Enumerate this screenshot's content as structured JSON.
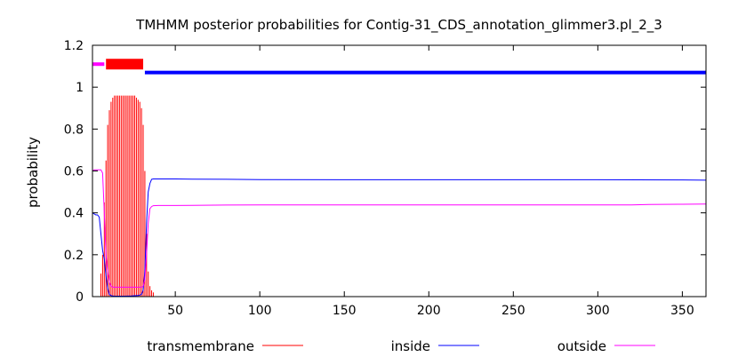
{
  "chart_data": {
    "type": "line",
    "title": "TMHMM posterior probabilities for Contig-31_CDS_annotation_glimmer3.pl_2_3",
    "xlabel": "",
    "ylabel": "probability",
    "xlim": [
      1,
      364
    ],
    "ylim": [
      0,
      1.2
    ],
    "x_ticks": [
      50,
      100,
      150,
      200,
      250,
      300,
      350
    ],
    "y_ticks": [
      0,
      0.2,
      0.4,
      0.6,
      0.8,
      1,
      1.2
    ],
    "y_tick_labels": [
      "0",
      "0.2",
      "0.4",
      "0.6",
      "0.8",
      "1",
      "1.2"
    ],
    "grid": false,
    "legend_position": "bottom",
    "topology": [
      {
        "region": "outside",
        "start": 1,
        "end": 8,
        "level": 1.11,
        "color": "#ff00ff"
      },
      {
        "region": "transmembrane",
        "start": 9,
        "end": 31,
        "level": 1.11,
        "color": "#ff0000"
      },
      {
        "region": "inside",
        "start": 32,
        "end": 364,
        "level": 1.07,
        "color": "#0000ff"
      }
    ],
    "series": [
      {
        "name": "transmembrane",
        "color": "#ff0000",
        "style": "impulses",
        "x": [
          6,
          7,
          8,
          9,
          10,
          11,
          12,
          13,
          14,
          15,
          16,
          17,
          18,
          19,
          20,
          21,
          22,
          23,
          24,
          25,
          26,
          27,
          28,
          29,
          30,
          31,
          32,
          33,
          34,
          35,
          36,
          37
        ],
        "values": [
          0.11,
          0.2,
          0.45,
          0.65,
          0.82,
          0.89,
          0.93,
          0.95,
          0.96,
          0.96,
          0.96,
          0.96,
          0.96,
          0.96,
          0.96,
          0.96,
          0.96,
          0.96,
          0.96,
          0.96,
          0.96,
          0.95,
          0.94,
          0.93,
          0.9,
          0.82,
          0.6,
          0.3,
          0.12,
          0.05,
          0.03,
          0.02
        ]
      },
      {
        "name": "inside",
        "color": "#0000ff",
        "style": "line",
        "x": [
          1,
          2,
          3,
          4,
          5,
          6,
          7,
          8,
          9,
          10,
          11,
          12,
          13,
          14,
          15,
          17,
          20,
          24,
          28,
          30,
          31,
          32,
          33,
          34,
          35,
          36,
          37,
          40,
          50,
          60,
          80,
          100,
          150,
          200,
          250,
          300,
          350,
          364
        ],
        "values": [
          0.4,
          0.395,
          0.39,
          0.39,
          0.38,
          0.3,
          0.22,
          0.18,
          0.1,
          0.04,
          0.01,
          0.005,
          0.003,
          0.002,
          0.002,
          0.002,
          0.002,
          0.003,
          0.005,
          0.01,
          0.03,
          0.12,
          0.35,
          0.5,
          0.54,
          0.56,
          0.562,
          0.562,
          0.562,
          0.561,
          0.56,
          0.559,
          0.558,
          0.558,
          0.558,
          0.558,
          0.557,
          0.556
        ]
      },
      {
        "name": "outside",
        "color": "#ff00ff",
        "style": "line",
        "x": [
          1,
          2,
          3,
          4,
          5,
          6,
          7,
          8,
          9,
          10,
          11,
          12,
          13,
          14,
          15,
          17,
          20,
          24,
          28,
          30,
          31,
          32,
          33,
          34,
          35,
          36,
          37,
          40,
          50,
          60,
          80,
          100,
          150,
          200,
          250,
          300,
          320,
          330,
          350,
          364
        ],
        "values": [
          0.6,
          0.605,
          0.605,
          0.605,
          0.605,
          0.605,
          0.59,
          0.4,
          0.2,
          0.12,
          0.07,
          0.05,
          0.045,
          0.045,
          0.045,
          0.045,
          0.045,
          0.045,
          0.045,
          0.045,
          0.05,
          0.08,
          0.2,
          0.35,
          0.42,
          0.43,
          0.434,
          0.435,
          0.435,
          0.436,
          0.437,
          0.438,
          0.438,
          0.438,
          0.438,
          0.438,
          0.438,
          0.44,
          0.441,
          0.442
        ]
      }
    ]
  }
}
